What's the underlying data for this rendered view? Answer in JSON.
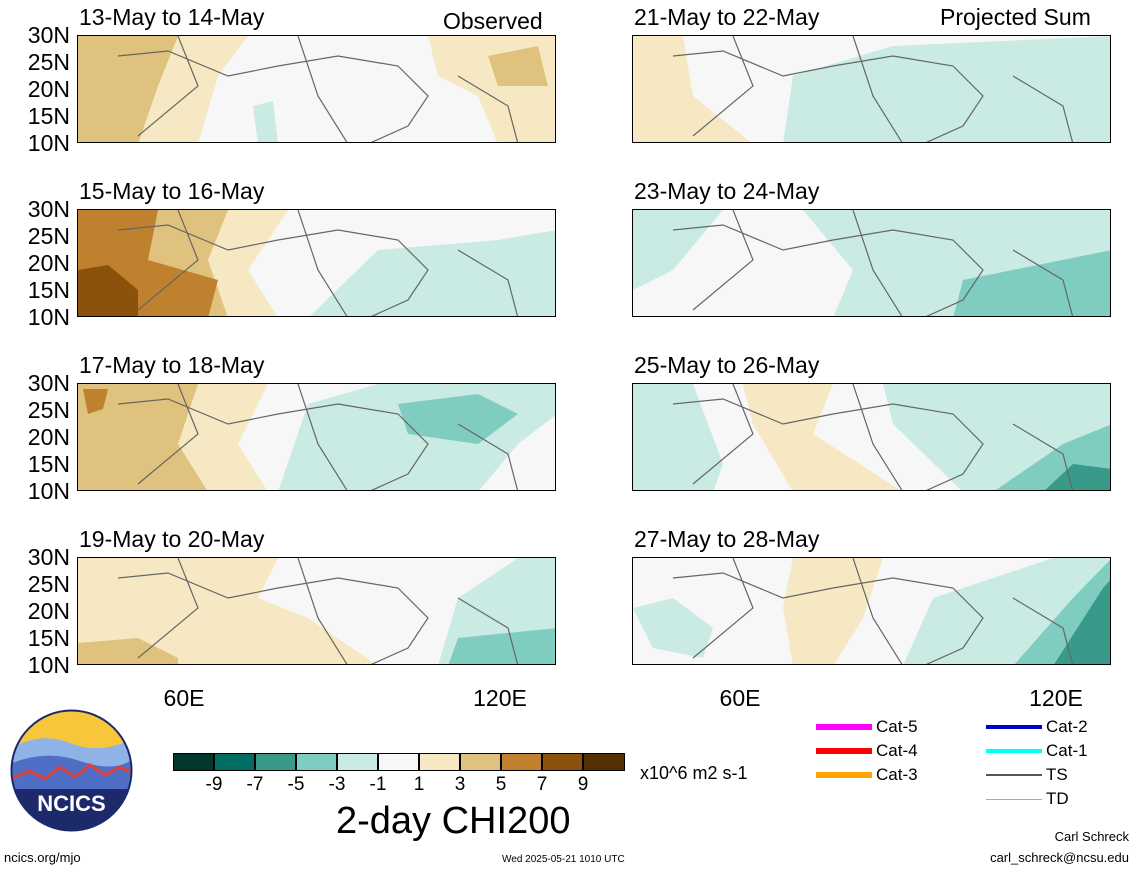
{
  "header": {
    "left_tag": "Observed",
    "right_tag": "Projected Sum"
  },
  "panels_left": [
    {
      "title": "13-May to 14-May"
    },
    {
      "title": "15-May to 16-May"
    },
    {
      "title": "17-May to 18-May"
    },
    {
      "title": "19-May to 20-May"
    }
  ],
  "panels_right": [
    {
      "title": "21-May to 22-May"
    },
    {
      "title": "23-May to 24-May"
    },
    {
      "title": "25-May to 26-May"
    },
    {
      "title": "27-May to 28-May"
    }
  ],
  "lat_labels": [
    "30N",
    "25N",
    "20N",
    "15N",
    "10N"
  ],
  "lon_labels": [
    "60E",
    "120E"
  ],
  "colorbar": {
    "colors": [
      "#00382e",
      "#006e62",
      "#3a9a8a",
      "#7ecdc0",
      "#c9ebe4",
      "#f7f7f7",
      "#f6e8c3",
      "#dfc27d",
      "#bf812d",
      "#8c510a",
      "#543005"
    ],
    "labels": [
      "-9",
      "-7",
      "-5",
      "-3",
      "-1",
      "1",
      "3",
      "5",
      "7",
      "9"
    ],
    "units": "x10^6 m2 s-1",
    "title": "2-day CHI200"
  },
  "storm_legend": [
    {
      "label": "Cat-5",
      "color": "#ff00ff"
    },
    {
      "label": "Cat-4",
      "color": "#ff0000"
    },
    {
      "label": "Cat-3",
      "color": "#ffa500"
    },
    {
      "label": "Cat-2",
      "color": "#0000cd"
    },
    {
      "label": "Cat-1",
      "color": "#00ffff"
    },
    {
      "label": "TS",
      "color": "#555555"
    },
    {
      "label": "TD",
      "color": "#aaaaaa"
    }
  ],
  "logo": {
    "text": "NCICS"
  },
  "footer": {
    "url": "ncics.org/mjo",
    "timestamp": "Wed 2025-05-21 1010 UTC",
    "author": "Carl Schreck",
    "email": "carl_schreck@ncsu.edu"
  }
}
